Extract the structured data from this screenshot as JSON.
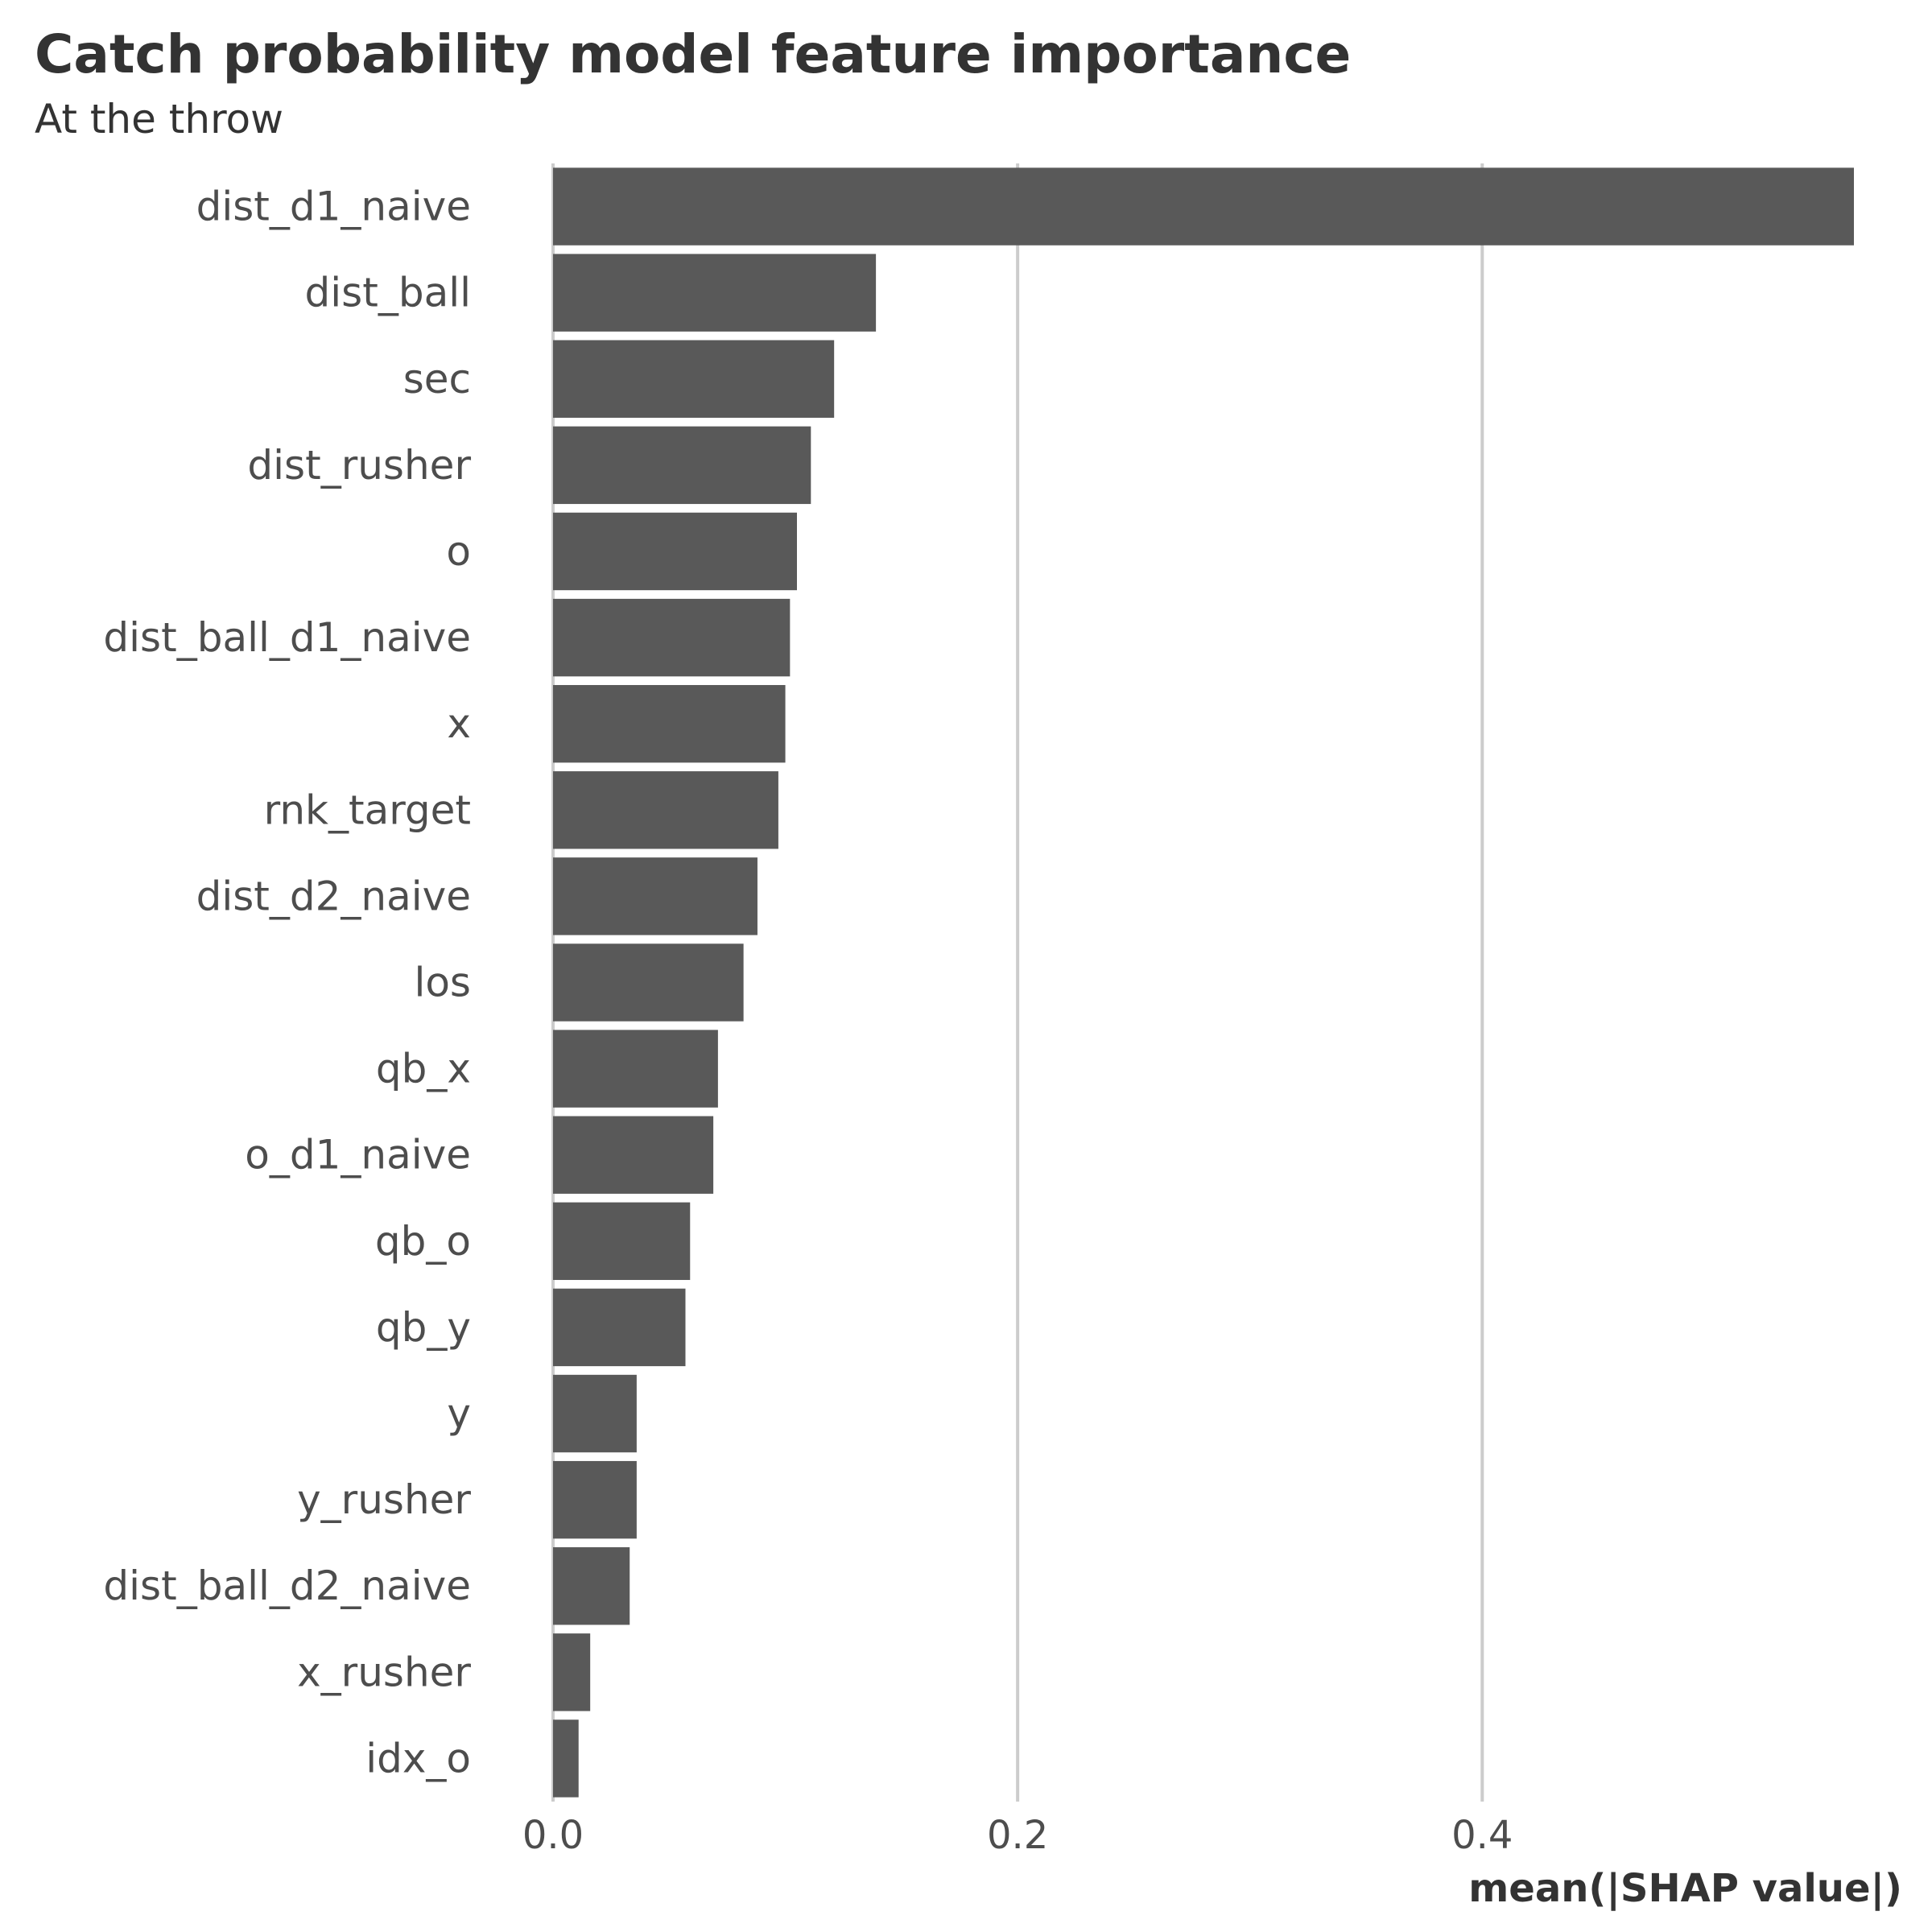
{
  "chart_data": {
    "type": "bar",
    "orientation": "horizontal",
    "title": "Catch probability model feature importance",
    "subtitle": "At the throw",
    "xlabel": "mean(|SHAP value|)",
    "ylabel": "",
    "xlim": [
      0,
      0.56
    ],
    "xticks": [
      0.0,
      0.2,
      0.4
    ],
    "xtick_labels": [
      "0.0",
      "0.2",
      "0.4"
    ],
    "grid": "vertical major",
    "legend": "none",
    "bar_color": "#595959",
    "categories": [
      "dist_d1_naive",
      "dist_ball",
      "sec",
      "dist_rusher",
      "o",
      "dist_ball_d1_naive",
      "x",
      "rnk_target",
      "dist_d2_naive",
      "los",
      "qb_x",
      "o_d1_naive",
      "qb_o",
      "qb_y",
      "y",
      "y_rusher",
      "dist_ball_d2_naive",
      "x_rusher",
      "idx_o"
    ],
    "values": [
      0.56,
      0.139,
      0.121,
      0.111,
      0.105,
      0.102,
      0.1,
      0.097,
      0.088,
      0.082,
      0.071,
      0.069,
      0.059,
      0.057,
      0.036,
      0.036,
      0.033,
      0.016,
      0.011
    ]
  }
}
